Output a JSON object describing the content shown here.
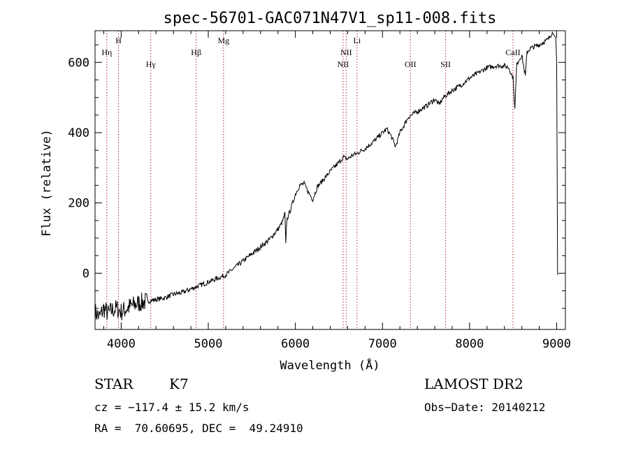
{
  "chart_data": {
    "type": "line",
    "title": "spec-56701-GAC071N47V1_sp11-008.fits",
    "xlabel": "Wavelength (Å)",
    "ylabel": "Flux (relative)",
    "xlim": [
      3700,
      9100
    ],
    "ylim": [
      -160,
      690
    ],
    "xticks": [
      4000,
      5000,
      6000,
      7000,
      8000,
      9000
    ],
    "yticks": [
      0,
      200,
      400,
      600
    ],
    "line_markers": [
      {
        "label": "Hη",
        "x": 3835,
        "row": 2
      },
      {
        "label": "H",
        "x": 3969,
        "row": 1
      },
      {
        "label": "Hγ",
        "x": 4340,
        "row": 3
      },
      {
        "label": "Hβ",
        "x": 4861,
        "row": 2
      },
      {
        "label": "Mg",
        "x": 5175,
        "row": 1
      },
      {
        "label": "NII",
        "x": 6548,
        "row": 3
      },
      {
        "label": "NII",
        "x": 6583,
        "row": 2
      },
      {
        "label": "Li",
        "x": 6708,
        "row": 1
      },
      {
        "label": "OII",
        "x": 7320,
        "row": 3
      },
      {
        "label": "SII",
        "x": 7725,
        "row": 3
      },
      {
        "label": "CaII",
        "x": 8498,
        "row": 2
      }
    ],
    "series": [
      {
        "x": [
          3700,
          3750,
          3800,
          3850,
          3900,
          3950,
          4000,
          4100,
          4200,
          4300,
          4400,
          4500,
          4600,
          4700,
          4800,
          4900,
          5000,
          5100,
          5200,
          5300,
          5400,
          5500,
          5600,
          5700,
          5800,
          5850,
          5880,
          5890,
          5900,
          5950,
          6000,
          6050,
          6100,
          6150,
          6200,
          6250,
          6300,
          6400,
          6500,
          6550,
          6600,
          6650,
          6700,
          6800,
          6900,
          7000,
          7050,
          7100,
          7150,
          7200,
          7300,
          7400,
          7500,
          7600,
          7650,
          7700,
          7800,
          7900,
          8000,
          8100,
          8200,
          8300,
          8400,
          8450,
          8500,
          8520,
          8540,
          8560,
          8600,
          8640,
          8660,
          8700,
          8800,
          8900,
          8950,
          8990,
          9000,
          9010
        ],
        "y": [
          -110,
          -125,
          -100,
          -115,
          -105,
          -100,
          -110,
          -95,
          -85,
          -80,
          -75,
          -70,
          -60,
          -55,
          -45,
          -35,
          -25,
          -15,
          -5,
          15,
          35,
          55,
          75,
          95,
          125,
          145,
          170,
          80,
          150,
          185,
          225,
          250,
          255,
          230,
          210,
          245,
          260,
          290,
          315,
          330,
          325,
          335,
          340,
          355,
          375,
          400,
          410,
          390,
          360,
          400,
          445,
          460,
          475,
          495,
          480,
          500,
          520,
          535,
          555,
          570,
          585,
          590,
          590,
          585,
          555,
          465,
          590,
          605,
          620,
          560,
          630,
          640,
          650,
          665,
          685,
          670,
          600,
          -5
        ]
      }
    ]
  },
  "info": {
    "object_class": "STAR",
    "subclass": "K7",
    "survey": "LAMOST DR2",
    "cz": "cz = −117.4 ± 15.2 km/s",
    "obs_date": "Obs−Date: 20140212",
    "radec": "RA =  70.60695, DEC =  49.24910"
  }
}
